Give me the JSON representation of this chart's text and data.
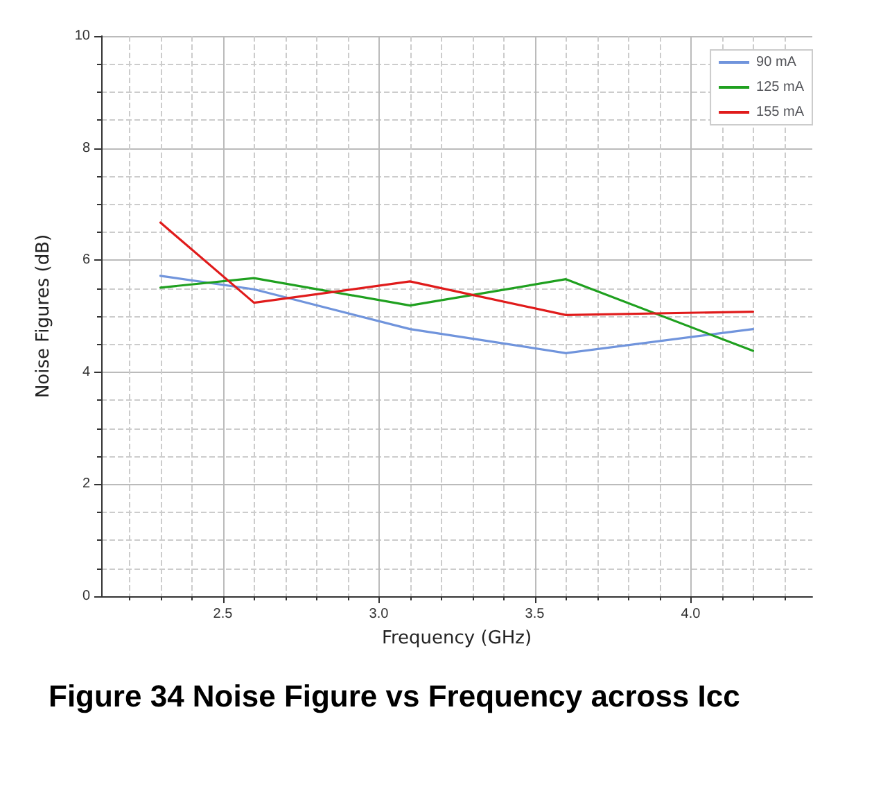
{
  "chart_data": {
    "type": "line",
    "title": "Figure 34 Noise Figure vs Frequency across Icc",
    "xlabel": "Frequency (GHz)",
    "ylabel": "Noise Figures (dB)",
    "xlim": [
      2.11,
      4.39
    ],
    "xticks": [
      {
        "value": 2.5,
        "label": "2.5"
      },
      {
        "value": 3,
        "label": "3.0"
      },
      {
        "value": 3.5,
        "label": "3.5"
      },
      {
        "value": 4,
        "label": "4.0"
      }
    ],
    "ylim": [
      0,
      10
    ],
    "yticks": [
      0,
      2,
      4,
      6,
      8,
      10
    ],
    "grid": true,
    "legend": "top right",
    "marker": "none",
    "line_style": "solid",
    "series": [
      {
        "name": "90 mA",
        "color": "#7094dc",
        "x": [
          2.3,
          2.6,
          3.1,
          3.6,
          4.2
        ],
        "values": [
          5.72,
          5.48,
          4.77,
          4.34,
          4.77
        ]
      },
      {
        "name": "125 mA",
        "color": "#1fa01f",
        "x": [
          2.3,
          2.6,
          3.1,
          3.6,
          4.2
        ],
        "values": [
          5.51,
          5.68,
          5.19,
          5.66,
          4.38
        ]
      },
      {
        "name": "155 mA",
        "color": "#e01b1b",
        "x": [
          2.3,
          2.6,
          3.1,
          3.6,
          4.2
        ],
        "values": [
          6.67,
          5.24,
          5.62,
          5.02,
          5.08
        ]
      }
    ]
  }
}
